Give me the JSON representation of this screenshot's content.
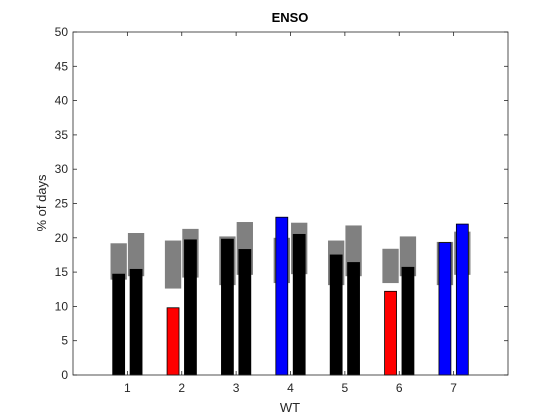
{
  "chart_data": {
    "type": "bar",
    "title": "ENSO",
    "xlabel": "WT",
    "ylabel": "% of days",
    "ylim": [
      0,
      50
    ],
    "yticks": [
      0,
      5,
      10,
      15,
      20,
      25,
      30,
      35,
      40,
      45,
      50
    ],
    "xlim": [
      0,
      8
    ],
    "categories": [
      "1",
      "2",
      "3",
      "4",
      "5",
      "6",
      "7"
    ],
    "grid": false,
    "legend": "none",
    "series": [
      {
        "values": [
          14.7,
          9.8,
          19.8,
          23.0,
          17.5,
          12.2,
          19.3
        ],
        "colors": [
          "#000000",
          "#ff0000",
          "#000000",
          "#0000ff",
          "#000000",
          "#ff0000",
          "#0000ff"
        ]
      },
      {
        "values": [
          15.4,
          19.7,
          18.3,
          20.5,
          16.4,
          15.7,
          22.0
        ],
        "colors": [
          "#000000",
          "#000000",
          "#000000",
          "#000000",
          "#000000",
          "#000000",
          "#0000ff"
        ]
      }
    ],
    "ranges": [
      {
        "low": [
          13.9,
          12.6,
          13.1,
          13.4,
          13.1,
          13.4,
          13.1
        ],
        "high": [
          19.2,
          19.6,
          20.2,
          20.0,
          19.6,
          18.4,
          19.4
        ]
      },
      {
        "low": [
          14.4,
          14.2,
          14.6,
          14.7,
          14.4,
          14.4,
          14.6
        ],
        "high": [
          20.7,
          21.3,
          22.3,
          22.2,
          21.8,
          20.2,
          20.9
        ]
      }
    ],
    "range_color": "#808080"
  }
}
